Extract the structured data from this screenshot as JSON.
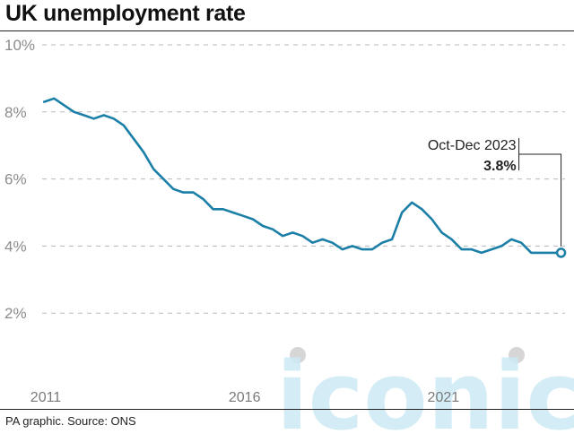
{
  "title": "UK unemployment rate",
  "source": "PA graphic. Source: ONS",
  "watermark": "iconic",
  "colors": {
    "line": "#1b7fa8",
    "grid": "#b8b8b8",
    "axis_text": "#8c8c8c",
    "watermark": "#cde9f5",
    "watermark_dot": "#cfcfcf"
  },
  "chart_data": {
    "type": "line",
    "title": "UK unemployment rate",
    "xlabel": "",
    "ylabel": "",
    "ylim": [
      0,
      10
    ],
    "xlim": [
      2011.0,
      2024.15
    ],
    "grid": true,
    "y_ticks": [
      {
        "value": 10,
        "label": "10%"
      },
      {
        "value": 8,
        "label": "8%"
      },
      {
        "value": 6,
        "label": "6%"
      },
      {
        "value": 4,
        "label": "4%"
      },
      {
        "value": 2,
        "label": "2%"
      }
    ],
    "x_ticks": [
      {
        "value": 2011,
        "label": "2011"
      },
      {
        "value": 2016,
        "label": "2016"
      },
      {
        "value": 2021,
        "label": "2021"
      }
    ],
    "series": [
      {
        "x": [
          2011.05,
          2011.3,
          2011.55,
          2011.8,
          2012.05,
          2012.3,
          2012.55,
          2012.8,
          2013.05,
          2013.3,
          2013.55,
          2013.8,
          2014.05,
          2014.3,
          2014.55,
          2014.8,
          2015.05,
          2015.3,
          2015.55,
          2015.8,
          2016.05,
          2016.3,
          2016.55,
          2016.8,
          2017.05,
          2017.3,
          2017.55,
          2017.8,
          2018.05,
          2018.3,
          2018.55,
          2018.8,
          2019.05,
          2019.3,
          2019.55,
          2019.8,
          2020.05,
          2020.3,
          2020.55,
          2020.8,
          2021.05,
          2021.3,
          2021.55,
          2021.8,
          2022.05,
          2022.3,
          2022.55,
          2022.8,
          2023.05,
          2023.3,
          2023.55,
          2023.8,
          2024.05
        ],
        "y": [
          8.3,
          8.4,
          8.2,
          8.0,
          7.9,
          7.8,
          7.9,
          7.8,
          7.6,
          7.2,
          6.8,
          6.3,
          6.0,
          5.7,
          5.6,
          5.6,
          5.4,
          5.1,
          5.1,
          5.0,
          4.9,
          4.8,
          4.6,
          4.5,
          4.3,
          4.4,
          4.3,
          4.1,
          4.2,
          4.1,
          3.9,
          4.0,
          3.9,
          3.9,
          4.1,
          4.2,
          5.0,
          5.3,
          5.1,
          4.8,
          4.4,
          4.2,
          3.9,
          3.9,
          3.8,
          3.9,
          4.0,
          4.2,
          4.1,
          3.8,
          3.8,
          3.8,
          3.8
        ]
      }
    ],
    "annotation": {
      "label": "Oct-Dec 2023",
      "value_label": "3.8%",
      "x": 2024.05,
      "y": 3.8
    }
  }
}
